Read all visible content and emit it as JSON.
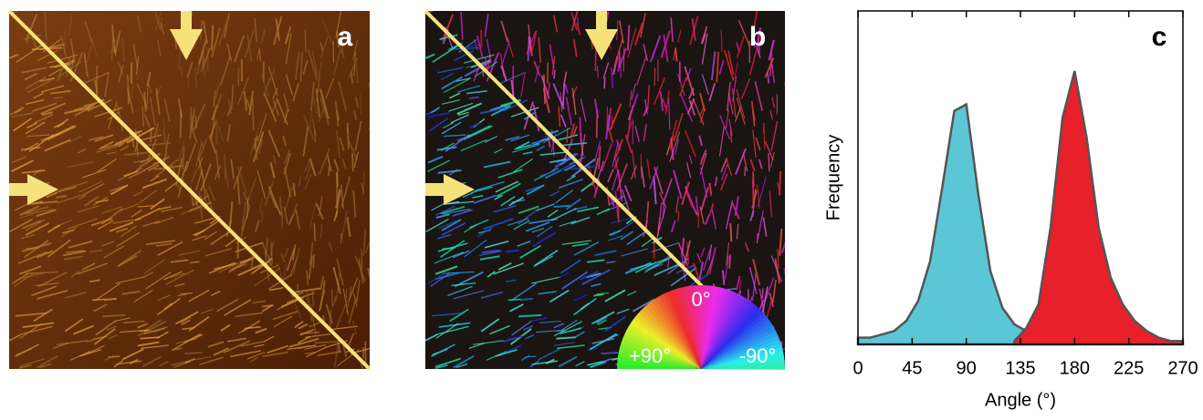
{
  "panels": {
    "a": {
      "label": "a"
    },
    "b": {
      "label": "b",
      "wheel_labels": [
        "0°",
        "+90°",
        "-90°"
      ]
    }
  },
  "chart_data": {
    "type": "area",
    "panel_label": "c",
    "xlabel": "Angle (°)",
    "ylabel": "Frequency",
    "x": [
      0,
      10,
      20,
      30,
      40,
      50,
      60,
      70,
      80,
      90,
      100,
      110,
      120,
      130,
      140,
      150,
      160,
      170,
      180,
      190,
      200,
      210,
      220,
      230,
      240,
      250,
      260,
      270
    ],
    "series": [
      {
        "color": "#5bc6d6",
        "values": [
          2,
          2,
          3,
          4,
          7,
          13,
          25,
          47,
          70,
          72,
          45,
          22,
          11,
          6,
          4,
          3,
          2,
          1,
          1,
          null,
          null,
          null,
          null,
          null,
          null,
          null,
          null,
          null
        ]
      },
      {
        "color": "#e8202a",
        "values": [
          null,
          null,
          null,
          null,
          null,
          null,
          null,
          null,
          null,
          null,
          null,
          null,
          null,
          1,
          5,
          12,
          35,
          68,
          82,
          62,
          35,
          20,
          12,
          7,
          4,
          2,
          1,
          1
        ]
      }
    ],
    "outline": "#555555",
    "xlim": [
      0,
      270
    ],
    "xticks": [
      0,
      45,
      90,
      135,
      180,
      225,
      270
    ],
    "ylim": [
      0,
      100
    ]
  }
}
